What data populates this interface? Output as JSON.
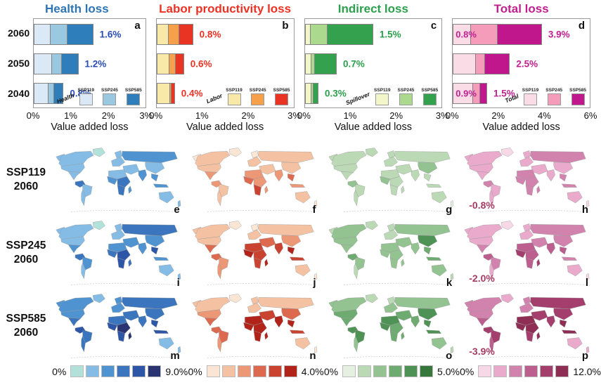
{
  "chart_data": [
    {
      "type": "bar",
      "orientation": "horizontal",
      "panel": "a",
      "title": "Health loss",
      "accent": "#2e75b6",
      "value_label_color": "#2a4db8",
      "legend_name": "Health",
      "categories": [
        "2060",
        "2050",
        "2040"
      ],
      "series": [
        {
          "name": "SSP119",
          "color": "#dbe9f6",
          "values": [
            0.45,
            0.5,
            0.4
          ]
        },
        {
          "name": "SSP245",
          "color": "#9ac8e0",
          "values": [
            0.9,
            0.75,
            0.55
          ]
        },
        {
          "name": "SSP585",
          "color": "#2e7ebc",
          "values": [
            1.6,
            1.2,
            0.8
          ]
        }
      ],
      "bar_labels": [
        "1.6%",
        "1.2%",
        "0.8%"
      ],
      "inner_labels": [
        "",
        "",
        ""
      ],
      "xlabel": "Value added loss",
      "xlim": [
        0,
        3
      ],
      "xticks": [
        "0%",
        "1%",
        "2%",
        "3%"
      ]
    },
    {
      "type": "bar",
      "orientation": "horizontal",
      "panel": "b",
      "title": "Labor productivity loss",
      "accent": "#ee3124",
      "value_label_color": "#ee3124",
      "legend_name": "Labor",
      "categories": [
        "2060",
        "2050",
        "2040"
      ],
      "series": [
        {
          "name": "SSP119",
          "color": "#f9e9a8",
          "values": [
            0.27,
            0.28,
            0.3
          ]
        },
        {
          "name": "SSP245",
          "color": "#f6a04b",
          "values": [
            0.5,
            0.42,
            0.33
          ]
        },
        {
          "name": "SSP585",
          "color": "#ea3423",
          "values": [
            0.8,
            0.6,
            0.4
          ]
        }
      ],
      "bar_labels": [
        "0.8%",
        "0.6%",
        "0.4%"
      ],
      "inner_labels": [
        "",
        "",
        ""
      ],
      "xlabel": "Value added loss",
      "xlim": [
        0,
        3
      ],
      "xticks": [
        "0%",
        "1%",
        "2%",
        "3%"
      ]
    },
    {
      "type": "bar",
      "orientation": "horizontal",
      "panel": "c",
      "title": "Indirect loss",
      "accent": "#2ca04c",
      "value_label_color": "#2ca04c",
      "legend_name": "Spillover",
      "categories": [
        "2060",
        "2050",
        "2040"
      ],
      "series": [
        {
          "name": "SSP119",
          "color": "#f3f6c8",
          "values": [
            0.13,
            0.15,
            0.15
          ]
        },
        {
          "name": "SSP245",
          "color": "#abd98e",
          "values": [
            0.5,
            0.23,
            0.2
          ]
        },
        {
          "name": "SSP585",
          "color": "#33a14d",
          "values": [
            1.5,
            0.7,
            0.3
          ]
        }
      ],
      "bar_labels": [
        "1.5%",
        "0.7%",
        "0.3%"
      ],
      "inner_labels": [
        "",
        "",
        ""
      ],
      "xlabel": "Value added loss",
      "xlim": [
        0,
        3
      ],
      "xticks": [
        "0%",
        "1%",
        "2%",
        "3%"
      ]
    },
    {
      "type": "bar",
      "orientation": "horizontal",
      "panel": "d",
      "title": "Total loss",
      "accent": "#c0218f",
      "value_label_color": "#c0218f",
      "legend_name": "Total",
      "categories": [
        "2060",
        "2050",
        "2040"
      ],
      "series": [
        {
          "name": "SSP119",
          "color": "#fadce6",
          "values": [
            0.8,
            1.0,
            0.9
          ]
        },
        {
          "name": "SSP245",
          "color": "#f49cba",
          "values": [
            1.95,
            1.4,
            1.2
          ]
        },
        {
          "name": "SSP585",
          "color": "#c0188c",
          "values": [
            3.9,
            2.5,
            1.5
          ]
        }
      ],
      "bar_labels": [
        "3.9%",
        "2.5%",
        "1.5%"
      ],
      "inner_labels": [
        "0.8%",
        "",
        "0.9%"
      ],
      "xlabel": "Value added loss",
      "xlim": [
        0,
        6
      ],
      "xticks": [
        "0%",
        "2%",
        "4%",
        "6%"
      ]
    }
  ],
  "maps": {
    "annotation_color": "#a73a63",
    "region_order": [
      "greenland",
      "alaska",
      "canada",
      "usa",
      "mexico",
      "colombia",
      "brazil",
      "argentina",
      "europe",
      "scandinavia",
      "russia",
      "mideast",
      "northafrica",
      "westafrica",
      "eastafrica",
      "southernafrica",
      "madagascar",
      "india",
      "china",
      "seasia",
      "indonesia",
      "australia",
      "newzealand"
    ],
    "rows": [
      {
        "label": [
          "SSP119",
          "2060"
        ],
        "panels": [
          {
            "letter": "e",
            "column": "health",
            "levels": [
              0,
              1,
              1,
              1,
              1,
              3,
              1,
              1,
              1,
              1,
              2,
              1,
              1,
              2,
              3,
              3,
              2,
              2,
              1,
              2,
              2,
              1,
              1
            ]
          },
          {
            "letter": "f",
            "column": "labor",
            "levels": [
              0,
              0,
              1,
              1,
              2,
              2,
              1,
              1,
              1,
              0,
              1,
              1,
              2,
              3,
              2,
              4,
              2,
              2,
              1,
              3,
              2,
              1,
              0
            ]
          },
          {
            "letter": "g",
            "column": "indirect",
            "levels": [
              1,
              1,
              1,
              1,
              1,
              2,
              1,
              1,
              1,
              1,
              1,
              1,
              1,
              2,
              1,
              1,
              1,
              1,
              2,
              1,
              1,
              1,
              0
            ]
          },
          {
            "letter": "h",
            "column": "total",
            "annotation": "-0.8%",
            "levels": [
              0,
              1,
              1,
              1,
              1,
              2,
              1,
              1,
              1,
              1,
              2,
              1,
              2,
              2,
              2,
              2,
              2,
              1,
              1,
              2,
              2,
              1,
              0
            ]
          }
        ]
      },
      {
        "label": [
          "SSP245",
          "2060"
        ],
        "panels": [
          {
            "letter": "i",
            "column": "health",
            "levels": [
              0,
              1,
              1,
              1,
              2,
              3,
              2,
              1,
              1,
              1,
              3,
              2,
              2,
              3,
              4,
              4,
              3,
              2,
              2,
              4,
              2,
              1,
              1
            ]
          },
          {
            "letter": "j",
            "column": "labor",
            "levels": [
              0,
              1,
              1,
              1,
              3,
              3,
              2,
              2,
              1,
              0,
              1,
              3,
              4,
              5,
              4,
              4,
              5,
              4,
              2,
              5,
              4,
              1,
              0
            ]
          },
          {
            "letter": "k",
            "column": "indirect",
            "levels": [
              1,
              1,
              2,
              2,
              2,
              3,
              2,
              1,
              1,
              1,
              2,
              2,
              2,
              2,
              2,
              2,
              2,
              2,
              4,
              3,
              3,
              2,
              1
            ]
          },
          {
            "letter": "l",
            "column": "total",
            "annotation": "-2.0%",
            "levels": [
              0,
              1,
              1,
              1,
              2,
              3,
              2,
              1,
              1,
              1,
              2,
              2,
              3,
              4,
              3,
              3,
              4,
              3,
              2,
              3,
              2,
              1,
              0
            ]
          }
        ]
      },
      {
        "label": [
          "SSP585",
          "2060"
        ],
        "panels": [
          {
            "letter": "m",
            "column": "health",
            "levels": [
              1,
              2,
              2,
              2,
              3,
              4,
              3,
              3,
              2,
              2,
              3,
              3,
              3,
              4,
              5,
              4,
              5,
              3,
              3,
              4,
              4,
              1,
              1
            ]
          },
          {
            "letter": "n",
            "column": "labor",
            "levels": [
              0,
              1,
              1,
              2,
              3,
              3,
              3,
              2,
              1,
              1,
              1,
              4,
              5,
              5,
              5,
              5,
              5,
              5,
              3,
              5,
              4,
              1,
              0
            ]
          },
          {
            "letter": "o",
            "column": "indirect",
            "levels": [
              1,
              2,
              2,
              3,
              3,
              4,
              4,
              2,
              2,
              1,
              2,
              3,
              4,
              4,
              3,
              3,
              3,
              3,
              4,
              4,
              4,
              2,
              1
            ]
          },
          {
            "letter": "p",
            "column": "total",
            "annotation": "-3.9%",
            "levels": [
              1,
              2,
              2,
              2,
              3,
              4,
              4,
              3,
              2,
              2,
              4,
              4,
              5,
              5,
              5,
              4,
              5,
              4,
              4,
              5,
              5,
              1,
              1
            ]
          }
        ]
      }
    ]
  },
  "colorbars": [
    {
      "column": "health",
      "min_label": "0%",
      "max_label": "9.0%",
      "colors": [
        "#b2e1da",
        "#85bce6",
        "#4f94d1",
        "#3a75bd",
        "#2d56a7",
        "#2b3472"
      ]
    },
    {
      "column": "labor",
      "min_label": "0%",
      "max_label": "4.0%",
      "colors": [
        "#fbe5d4",
        "#f4c2a2",
        "#ec9877",
        "#dd6a4f",
        "#ca4331",
        "#b2231a"
      ]
    },
    {
      "column": "indirect",
      "min_label": "0%",
      "max_label": "5.0%",
      "colors": [
        "#e6f0e0",
        "#bcd9b6",
        "#94c392",
        "#6dab70",
        "#4e9355",
        "#36783c"
      ]
    },
    {
      "column": "total",
      "min_label": "0%",
      "max_label": "12.0%",
      "colors": [
        "#f6d8e7",
        "#e9aacb",
        "#d283ad",
        "#bc5e8e",
        "#a43e6d",
        "#8f2e54"
      ]
    }
  ]
}
